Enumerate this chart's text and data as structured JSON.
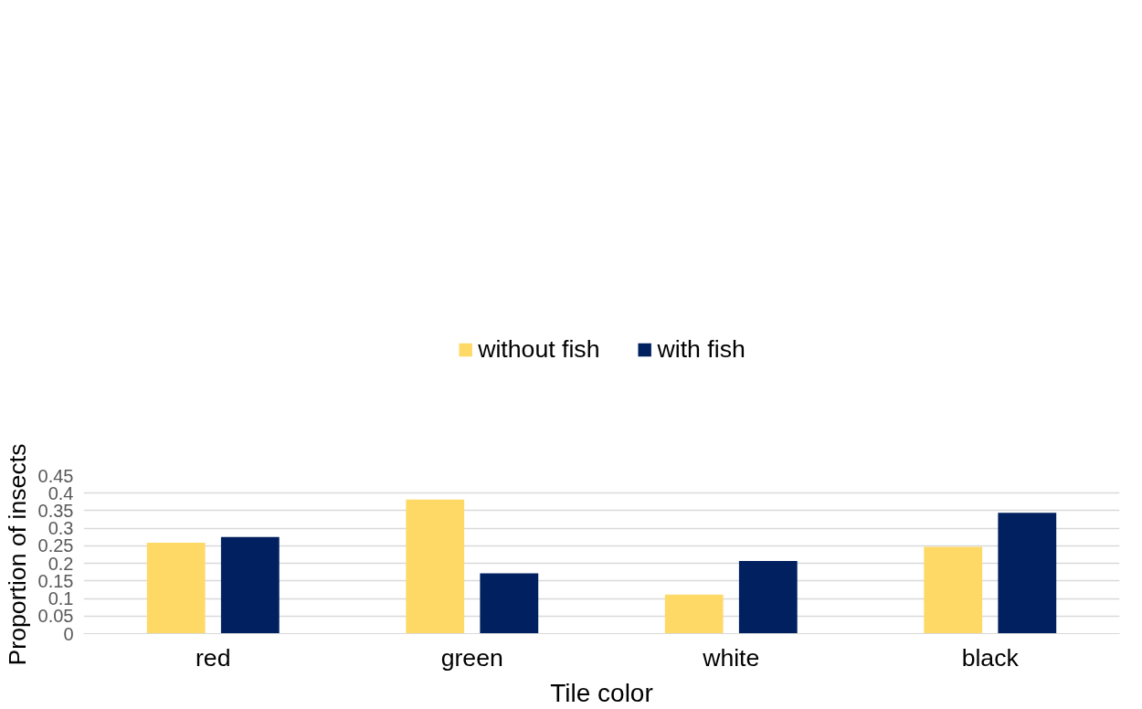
{
  "chart_data": {
    "type": "bar",
    "xlabel": "Tile color",
    "ylabel": "Proportion of insects",
    "categories": [
      "red",
      "green",
      "white",
      "black"
    ],
    "series": [
      {
        "name": "without fish",
        "color": "#ffd966",
        "values": [
          0.259,
          0.382,
          0.111,
          0.247
        ]
      },
      {
        "name": "with fish",
        "color": "#002060",
        "values": [
          0.275,
          0.172,
          0.207,
          0.344
        ]
      }
    ],
    "ylim": [
      0,
      0.45
    ],
    "yticks": [
      0,
      0.05,
      0.1,
      0.15,
      0.2,
      0.25,
      0.3,
      0.35,
      0.4,
      0.45
    ],
    "grid": "y",
    "legend": "top"
  }
}
